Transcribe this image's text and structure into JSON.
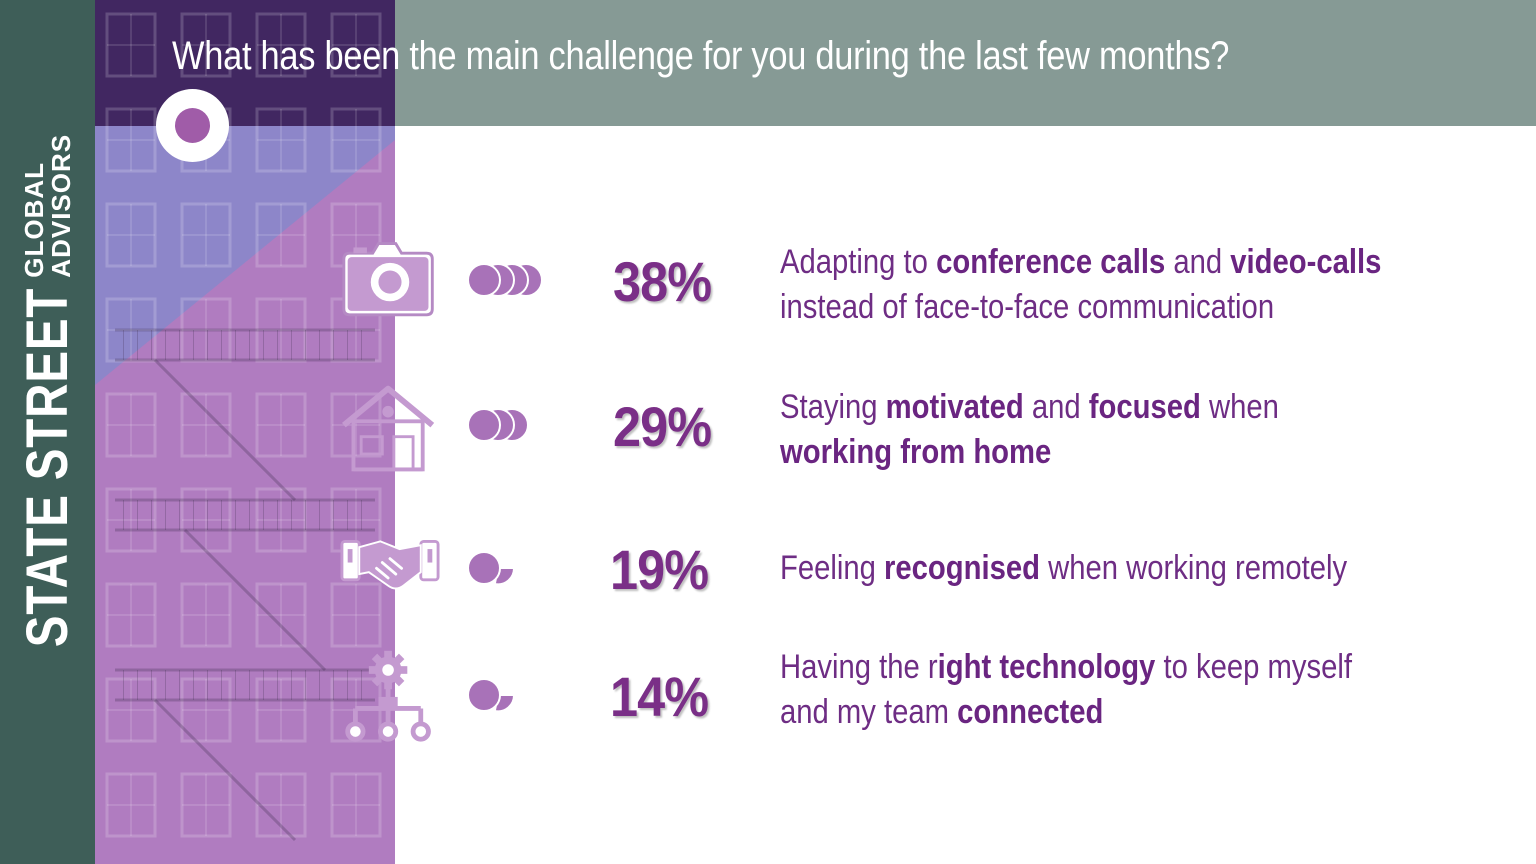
{
  "brand": {
    "main": "STATE STREET",
    "sub_line1": "GLOBAL",
    "sub_line2": "ADVISORS"
  },
  "title": "What has been the main challenge for you during the last few months?",
  "colors": {
    "sidebar": "#3e5e58",
    "header": "#869a95",
    "accent_purple": "#7a2f87",
    "dot_purple": "#a872b8",
    "photo_tint": "#a870b8"
  },
  "chart_data": {
    "type": "table",
    "unit": "%",
    "items": [
      {
        "icon": "camera-icon",
        "percent": 38,
        "label": "38%",
        "description": [
          "Adapting to ",
          {
            "b": "conference calls"
          },
          " and ",
          {
            "b": "video-calls"
          },
          {
            "br": true
          },
          "instead of face-to-face communication"
        ]
      },
      {
        "icon": "house-icon",
        "percent": 29,
        "label": "29%",
        "description": [
          "Staying ",
          {
            "b": "motivated"
          },
          " and ",
          {
            "b": "focused"
          },
          " when",
          {
            "br": true
          },
          {
            "b": "working from home"
          }
        ]
      },
      {
        "icon": "handshake-icon",
        "percent": 19,
        "label": "19%",
        "description": [
          "Feeling ",
          {
            "b": "recognised"
          },
          " when working remotely"
        ]
      },
      {
        "icon": "gear-network-icon",
        "percent": 14,
        "label": "14%",
        "description": [
          "Having the r",
          {
            "b": "ight technology"
          },
          " to keep myself",
          {
            "br": true
          },
          "and my team ",
          {
            "b": "connected"
          }
        ]
      }
    ]
  }
}
